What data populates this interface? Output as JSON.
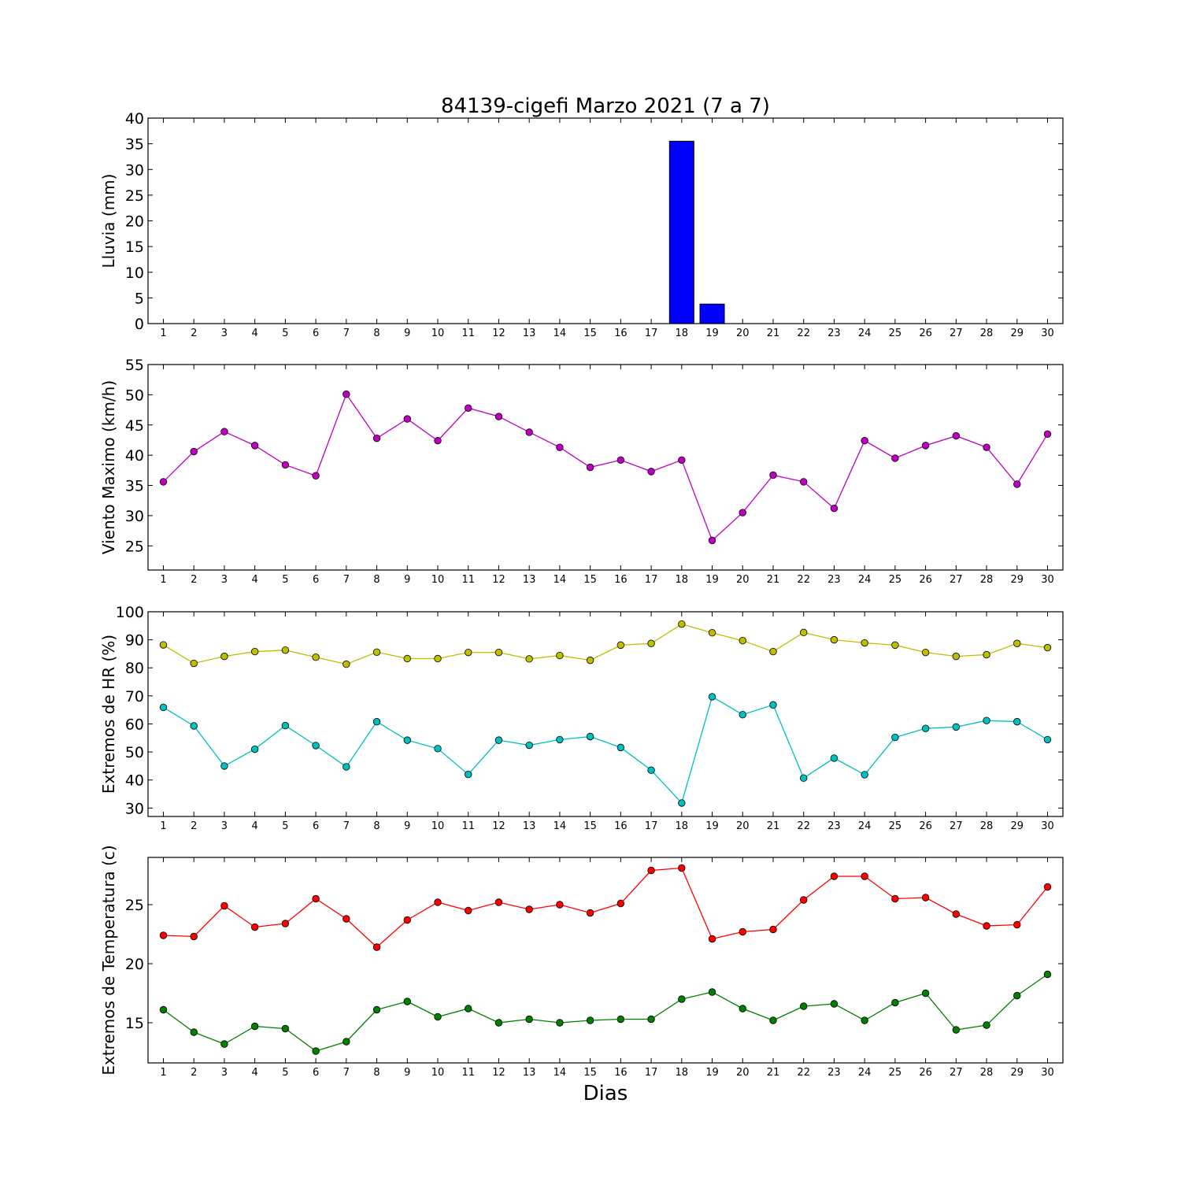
{
  "chart_data": {
    "title": "84139-cigefi Marzo 2021  (7 a 7)",
    "xlabel": "Dias",
    "days": [
      1,
      2,
      3,
      4,
      5,
      6,
      7,
      8,
      9,
      10,
      11,
      12,
      13,
      14,
      15,
      16,
      17,
      18,
      19,
      20,
      21,
      22,
      23,
      24,
      25,
      26,
      27,
      28,
      29,
      30
    ],
    "panels": [
      {
        "type": "bar",
        "ylabel": "Lluvia (mm)",
        "ylim": [
          0,
          40
        ],
        "yticks": [
          0,
          5,
          10,
          15,
          20,
          25,
          30,
          35,
          40
        ],
        "series": [
          {
            "color": "#0000ff",
            "values": [
              0,
              0,
              0,
              0,
              0,
              0,
              0,
              0,
              0,
              0,
              0,
              0,
              0,
              0,
              0,
              0,
              0,
              35.5,
              3.8,
              0,
              0,
              0,
              0,
              0,
              0,
              0,
              0,
              0,
              0,
              0
            ]
          }
        ]
      },
      {
        "type": "line",
        "ylabel": "Viento Maximo (km/h)",
        "ylim": [
          21,
          55
        ],
        "yticks": [
          25,
          30,
          35,
          40,
          45,
          50,
          55
        ],
        "series": [
          {
            "color": "#bf00bf",
            "values": [
              35.6,
              40.6,
              43.9,
              41.6,
              38.4,
              36.6,
              50.1,
              42.8,
              46.0,
              42.4,
              47.8,
              46.4,
              43.8,
              41.3,
              38.0,
              39.2,
              37.3,
              39.2,
              25.9,
              30.5,
              36.7,
              35.6,
              31.2,
              42.4,
              39.5,
              41.6,
              43.2,
              41.3,
              35.2,
              43.5
            ]
          }
        ]
      },
      {
        "type": "line",
        "ylabel": "Extremos de HR (%)",
        "ylim": [
          27,
          100
        ],
        "yticks": [
          30,
          40,
          50,
          60,
          70,
          80,
          90,
          100
        ],
        "series": [
          {
            "color": "#bfbf00",
            "values": [
              88.2,
              81.6,
              84.1,
              85.8,
              86.3,
              83.8,
              81.3,
              85.6,
              83.3,
              83.3,
              85.5,
              85.5,
              83.2,
              84.4,
              82.7,
              88.1,
              88.7,
              95.6,
              92.5,
              89.7,
              85.8,
              92.6,
              90.0,
              88.9,
              88.1,
              85.5,
              84.1,
              84.7,
              88.7,
              87.2
            ]
          },
          {
            "color": "#00bfbf",
            "values": [
              65.9,
              59.3,
              45.0,
              51.0,
              59.4,
              52.3,
              44.7,
              60.8,
              54.2,
              51.2,
              42.0,
              54.2,
              52.4,
              54.4,
              55.5,
              51.6,
              43.5,
              31.8,
              69.7,
              63.3,
              66.8,
              40.7,
              47.8,
              41.9,
              55.2,
              58.4,
              58.9,
              61.2,
              60.8,
              54.4
            ]
          }
        ]
      },
      {
        "type": "line",
        "ylabel": "Extremos de Temperatura (c)",
        "ylim": [
          11.6,
          29
        ],
        "yticks": [
          15,
          20,
          25
        ],
        "series": [
          {
            "color": "#ff0000",
            "values": [
              22.4,
              22.3,
              24.9,
              23.1,
              23.4,
              25.5,
              23.8,
              21.4,
              23.7,
              25.2,
              24.5,
              25.2,
              24.6,
              25.0,
              24.3,
              25.1,
              27.9,
              28.1,
              22.1,
              22.7,
              22.9,
              25.4,
              27.4,
              27.4,
              25.5,
              25.6,
              24.2,
              23.2,
              23.3,
              26.5
            ]
          },
          {
            "color": "#008000",
            "values": [
              16.1,
              14.2,
              13.2,
              14.7,
              14.5,
              12.6,
              13.4,
              16.1,
              16.8,
              15.5,
              16.2,
              15.0,
              15.3,
              15.0,
              15.2,
              15.3,
              15.3,
              17.0,
              17.6,
              16.2,
              15.2,
              16.4,
              16.6,
              15.2,
              16.7,
              17.5,
              14.4,
              14.8,
              17.3,
              19.1
            ]
          }
        ]
      }
    ]
  }
}
